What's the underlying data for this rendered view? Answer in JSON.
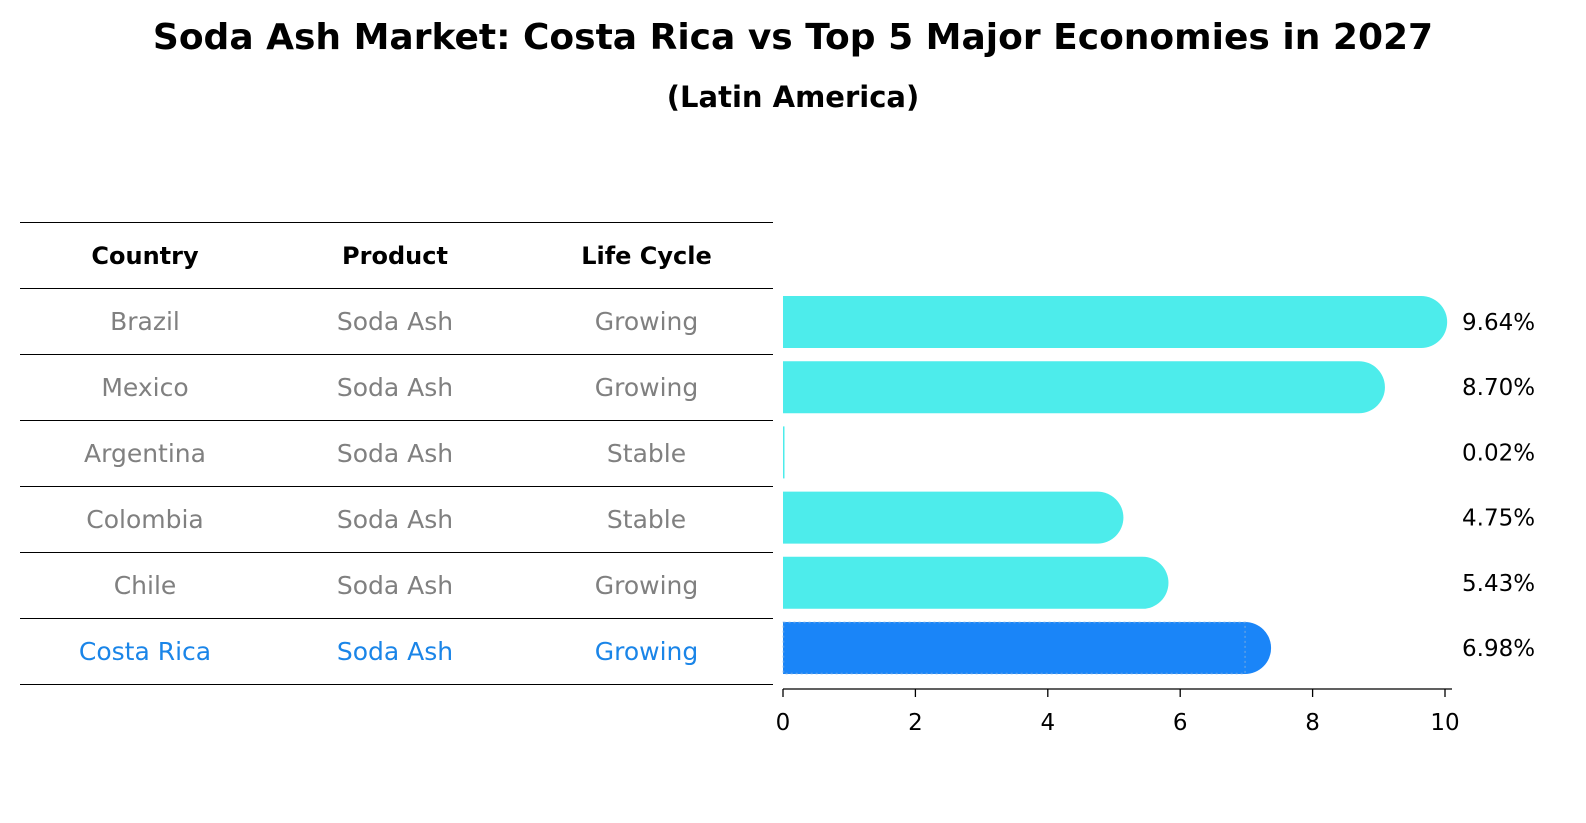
{
  "header": {
    "title": "Soda Ash Market: Costa Rica vs Top 5 Major Economies in 2027",
    "subtitle": "(Latin America)"
  },
  "table": {
    "columns": [
      "Country",
      "Product",
      "Life Cycle"
    ],
    "rows": [
      {
        "country": "Brazil",
        "product": "Soda Ash",
        "life_cycle": "Growing"
      },
      {
        "country": "Mexico",
        "product": "Soda Ash",
        "life_cycle": "Growing"
      },
      {
        "country": "Argentina",
        "product": "Soda Ash",
        "life_cycle": "Stable"
      },
      {
        "country": "Colombia",
        "product": "Soda Ash",
        "life_cycle": "Stable"
      },
      {
        "country": "Chile",
        "product": "Soda Ash",
        "life_cycle": "Growing"
      },
      {
        "country": "Costa Rica",
        "product": "Soda Ash",
        "life_cycle": "Growing"
      }
    ]
  },
  "colors": {
    "bar": "#4deceb",
    "highlight": "#1a85f8",
    "highlight_text": "#1a85e8",
    "muted_text": "#808080"
  },
  "chart_data": {
    "type": "bar",
    "orientation": "horizontal",
    "title": "Soda Ash Market: Costa Rica vs Top 5 Major Economies in 2027",
    "subtitle": "(Latin America)",
    "categories": [
      "Brazil",
      "Mexico",
      "Argentina",
      "Colombia",
      "Chile",
      "Costa Rica"
    ],
    "values": [
      9.64,
      8.7,
      0.02,
      4.75,
      5.43,
      6.98
    ],
    "value_labels": [
      "9.64%",
      "8.70%",
      "0.02%",
      "4.75%",
      "5.43%",
      "6.98%"
    ],
    "highlight_category": "Costa Rica",
    "xlim": [
      0,
      10
    ],
    "xticks": [
      0,
      2,
      4,
      6,
      8,
      10
    ],
    "xlabel": "",
    "ylabel": "",
    "grid": false
  }
}
